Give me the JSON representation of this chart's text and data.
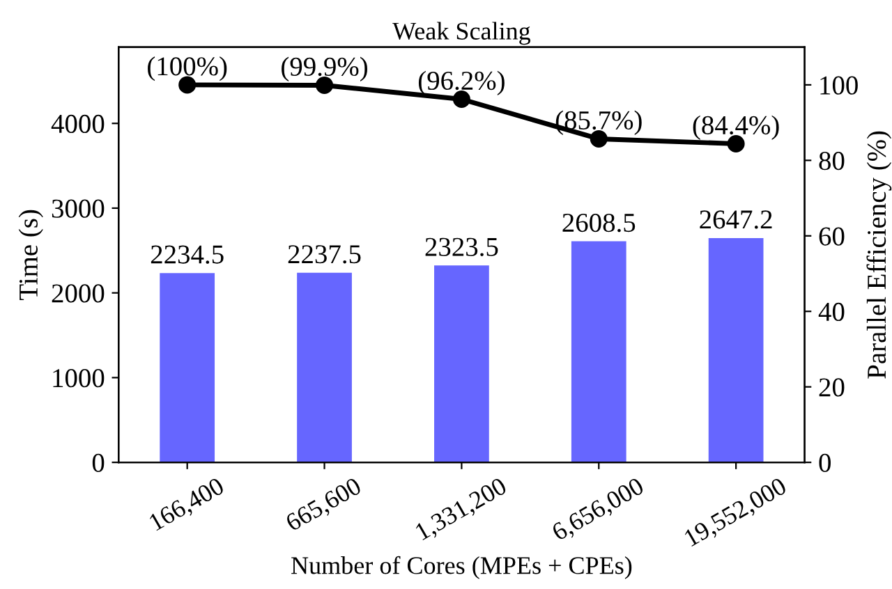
{
  "chart_data": {
    "type": "bar",
    "title": "Weak Scaling",
    "xlabel": "Number of Cores (MPEs + CPEs)",
    "ylabel": "Time (s)",
    "y2label": "Parallel Efficiency (%)",
    "categories": [
      "166,400",
      "665,600",
      "1,331,200",
      "6,656,000",
      "19,552,000"
    ],
    "series": [
      {
        "color": "#6666ff",
        "values": [
          2234.5,
          2237.5,
          2323.5,
          2608.5,
          2647.2
        ]
      },
      {
        "type": "line",
        "axis": "y2",
        "color": "#000000",
        "values": [
          100,
          99.9,
          96.2,
          85.7,
          84.4
        ],
        "value_labels": [
          "(100%)",
          "(99.9%)",
          "(96.2%)",
          "(85.7%)",
          "(84.4%)"
        ]
      }
    ],
    "data_labels": true,
    "marker": "circle",
    "line_style": "solid",
    "grid": false,
    "ylim": [
      0,
      4900
    ],
    "yticks": [
      0,
      1000,
      2000,
      3000,
      4000
    ],
    "y2lim": [
      0,
      110
    ],
    "y2ticks": [
      0,
      20,
      40,
      60,
      80,
      100
    ]
  }
}
